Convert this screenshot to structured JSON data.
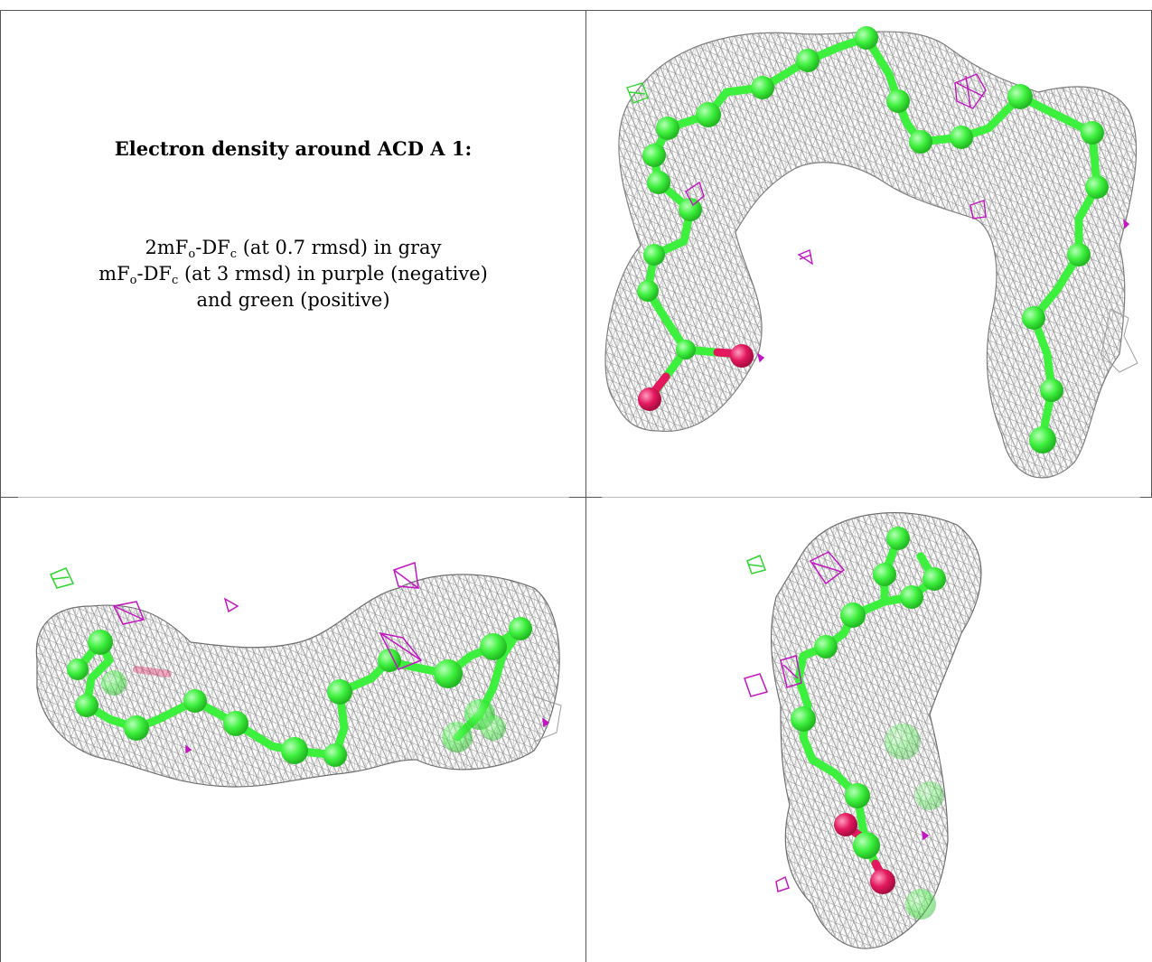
{
  "caption": {
    "title": "Electron density around ACD A 1:",
    "line1": {
      "a": "2mF",
      "sub1": "o",
      "b": "-DF",
      "sub2": "c",
      "c": " (at 0.7 rmsd) in gray"
    },
    "line2": {
      "a": "mF",
      "sub1": "o",
      "b": "-DF",
      "sub2": "c",
      "c": " (at 3 rmsd) in purple (negative)"
    },
    "line3": "and green (positive)"
  },
  "colors": {
    "mesh": "#8c8c8c",
    "carbon": "#3ef03e",
    "oxygen": "#e3185e",
    "negative": "#c216c2",
    "positive": "#2ed62e"
  }
}
